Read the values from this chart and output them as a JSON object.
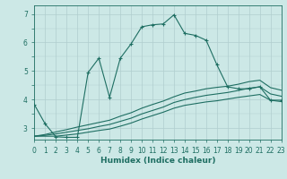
{
  "xlabel": "Humidex (Indice chaleur)",
  "xlim": [
    0,
    23
  ],
  "ylim": [
    2.6,
    7.3
  ],
  "bg_color": "#cce8e6",
  "grid_color": "#b0cece",
  "line_color": "#1e6e62",
  "xticks": [
    0,
    1,
    2,
    3,
    4,
    5,
    6,
    7,
    8,
    9,
    10,
    11,
    12,
    13,
    14,
    15,
    16,
    17,
    18,
    19,
    20,
    21,
    22,
    23
  ],
  "yticks": [
    3,
    4,
    5,
    6,
    7
  ],
  "series": [
    {
      "x": [
        0,
        1,
        2,
        3,
        4,
        5,
        6,
        7,
        8,
        9,
        10,
        11,
        12,
        13,
        14,
        15,
        16,
        17,
        18,
        19,
        20,
        21,
        22,
        23
      ],
      "y": [
        3.82,
        3.15,
        2.7,
        2.68,
        2.68,
        4.95,
        5.45,
        4.08,
        5.45,
        5.95,
        6.55,
        6.62,
        6.65,
        6.97,
        6.32,
        6.25,
        6.08,
        5.22,
        4.45,
        4.38,
        4.38,
        4.45,
        3.98,
        3.98
      ],
      "with_marker": true
    },
    {
      "x": [
        0,
        1,
        2,
        3,
        4,
        5,
        6,
        7,
        8,
        9,
        10,
        11,
        12,
        13,
        14,
        15,
        16,
        17,
        18,
        19,
        20,
        21,
        22,
        23
      ],
      "y": [
        2.72,
        2.72,
        2.72,
        2.76,
        2.8,
        2.86,
        2.92,
        2.97,
        3.07,
        3.18,
        3.32,
        3.44,
        3.56,
        3.7,
        3.8,
        3.86,
        3.92,
        3.96,
        4.02,
        4.08,
        4.13,
        4.18,
        3.98,
        3.93
      ],
      "with_marker": false
    },
    {
      "x": [
        0,
        1,
        2,
        3,
        4,
        5,
        6,
        7,
        8,
        9,
        10,
        11,
        12,
        13,
        14,
        15,
        16,
        17,
        18,
        19,
        20,
        21,
        22,
        23
      ],
      "y": [
        2.72,
        2.75,
        2.8,
        2.86,
        2.92,
        2.98,
        3.06,
        3.13,
        3.24,
        3.35,
        3.5,
        3.62,
        3.74,
        3.9,
        4.0,
        4.08,
        4.15,
        4.2,
        4.25,
        4.32,
        4.4,
        4.45,
        4.2,
        4.12
      ],
      "with_marker": false
    },
    {
      "x": [
        0,
        1,
        2,
        3,
        4,
        5,
        6,
        7,
        8,
        9,
        10,
        11,
        12,
        13,
        14,
        15,
        16,
        17,
        18,
        19,
        20,
        21,
        22,
        23
      ],
      "y": [
        2.72,
        2.78,
        2.87,
        2.95,
        3.04,
        3.12,
        3.2,
        3.28,
        3.42,
        3.54,
        3.7,
        3.83,
        3.95,
        4.1,
        4.23,
        4.3,
        4.38,
        4.43,
        4.47,
        4.54,
        4.63,
        4.68,
        4.42,
        4.33
      ],
      "with_marker": false
    }
  ]
}
